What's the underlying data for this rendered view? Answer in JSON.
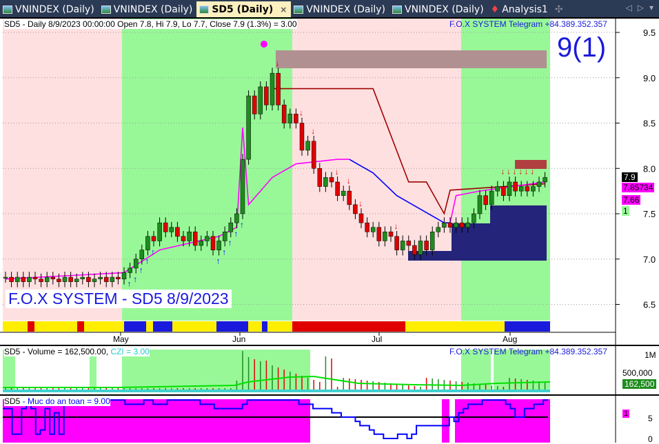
{
  "tabs": [
    {
      "label": "VNINDEX (Daily)",
      "active": false
    },
    {
      "label": "VNINDEX (Daily)",
      "active": false
    },
    {
      "label": "SD5 (Daily)",
      "active": true
    },
    {
      "label": "VNINDEX (Daily)",
      "active": false
    },
    {
      "label": "VNINDEX (Daily)",
      "active": false
    },
    {
      "label": "Analysis1",
      "active": false
    }
  ],
  "tab_close": "×",
  "tab_add": "✣",
  "tab_nav": [
    "◁",
    "▷",
    "▾"
  ],
  "main": {
    "title": "SD5 - Daily 8/9/2023 00:00:00 Open 7.8, Hi 7.9, Lo 7.7, Close 7.9 (1.3%)   = 3.00",
    "telegram": "F.O.X SYSTEM Telegram +84.389.352.357",
    "big_label": "9(1)",
    "watermark": "F.O.X SYSTEM - SD5 8/9/2023",
    "price_tag": "7.9",
    "tag2": "7.85734",
    "tag3": "7.66",
    "tag4": "1"
  },
  "volume_pane": {
    "symbol": "SD5",
    "label": " - Volume = 162,500.00, ",
    "czi": "CZI = 3.00",
    "telegram": "F.O.X SYSTEM Telegram +84.389.352.357",
    "ticks": [
      "1M",
      "500,000",
      "0"
    ],
    "tag": "162,500"
  },
  "safety_pane": {
    "symbol": "SD5",
    "label": " - Muc do an toan = 9.00",
    "ticks": [
      "5",
      "0"
    ],
    "tag": "1"
  },
  "colors": {
    "up": "#1e8c1e",
    "down": "#e00000",
    "bg_green": "#98f898",
    "bg_pink": "#ffe0e0",
    "navy": "#24247a",
    "magenta": "#ff00ff",
    "blue": "#0000ff",
    "brown": "#a00000"
  },
  "chart_data": {
    "type": "candlestick",
    "x_ticks": [
      "May",
      "Jun",
      "Jul",
      "Aug"
    ],
    "y_ticks": [
      "9.5",
      "9.0",
      "8.5",
      "8.0",
      "7.5",
      "7.0",
      "6.5"
    ],
    "ylim": [
      6.3,
      9.65
    ],
    "close": [
      6.8,
      6.75,
      6.8,
      6.75,
      6.8,
      6.78,
      6.75,
      6.8,
      6.78,
      6.75,
      6.8,
      6.75,
      6.78,
      6.8,
      6.75,
      6.78,
      6.8,
      6.75,
      6.8,
      6.78,
      6.85,
      6.9,
      7.0,
      7.1,
      7.25,
      7.2,
      7.4,
      7.3,
      7.35,
      7.25,
      7.2,
      7.3,
      7.15,
      7.2,
      7.25,
      7.1,
      7.2,
      7.3,
      7.4,
      7.5,
      8.1,
      8.8,
      8.6,
      8.9,
      8.7,
      9.05,
      8.7,
      8.5,
      8.6,
      8.5,
      8.2,
      8.3,
      8.0,
      7.8,
      7.9,
      7.85,
      7.7,
      7.75,
      7.6,
      7.5,
      7.4,
      7.3,
      7.35,
      7.2,
      7.3,
      7.25,
      7.1,
      7.2,
      7.15,
      7.05,
      7.2,
      7.1,
      7.3,
      7.35,
      7.4,
      7.35,
      7.4,
      7.35,
      7.4,
      7.5,
      7.7,
      7.6,
      7.75,
      7.8,
      7.7,
      7.85,
      7.75,
      7.8,
      7.75,
      7.8,
      7.85,
      7.9
    ],
    "stop_line": [
      [
        45,
        8.88
      ],
      [
        62,
        8.88
      ],
      [
        68,
        7.85
      ],
      [
        71,
        7.85
      ],
      [
        74,
        7.5
      ],
      [
        75,
        7.76
      ],
      [
        91,
        7.83
      ]
    ],
    "trend_magenta": [
      [
        0,
        6.78
      ],
      [
        20,
        6.85
      ],
      [
        26,
        7.1
      ],
      [
        36,
        7.25
      ],
      [
        39,
        7.35
      ],
      [
        40,
        8.45
      ],
      [
        41,
        7.6
      ],
      [
        45,
        7.9
      ],
      [
        49,
        8.05
      ],
      [
        56,
        8.1
      ],
      [
        58,
        8.1
      ]
    ],
    "trend_blue": [
      [
        58,
        8.1
      ],
      [
        62,
        7.95
      ],
      [
        66,
        7.7
      ],
      [
        70,
        7.55
      ],
      [
        74,
        7.4
      ],
      [
        75,
        7.4
      ]
    ],
    "trend_magenta2": [
      [
        75,
        7.4
      ],
      [
        76,
        7.7
      ],
      [
        80,
        7.75
      ],
      [
        91,
        7.85
      ]
    ],
    "volume_axis_max": "1M",
    "safety_level": [
      7,
      7,
      1,
      1,
      7,
      9,
      7,
      1,
      2,
      7,
      1,
      6,
      1,
      9,
      9,
      9,
      9,
      9,
      9,
      9,
      9,
      9,
      9,
      9,
      9,
      9,
      8,
      8,
      8,
      8,
      9,
      9,
      8,
      8,
      8,
      9,
      9,
      9,
      9,
      9,
      9,
      9,
      8,
      8,
      8,
      7,
      7,
      7,
      7,
      7,
      7,
      8,
      9,
      9,
      9,
      9,
      9,
      9,
      9,
      9,
      9,
      9,
      9,
      8,
      8,
      8,
      7,
      7,
      7,
      7,
      6,
      6,
      5,
      5,
      5,
      4,
      3,
      3,
      2,
      1,
      1,
      0,
      0,
      0,
      1,
      1,
      0,
      1,
      3,
      3,
      3,
      3,
      3,
      3,
      3,
      5,
      4,
      6,
      7,
      8,
      8,
      8,
      9,
      9,
      9,
      9,
      9,
      8,
      7,
      5,
      5,
      7,
      7,
      8,
      8,
      9
    ]
  }
}
